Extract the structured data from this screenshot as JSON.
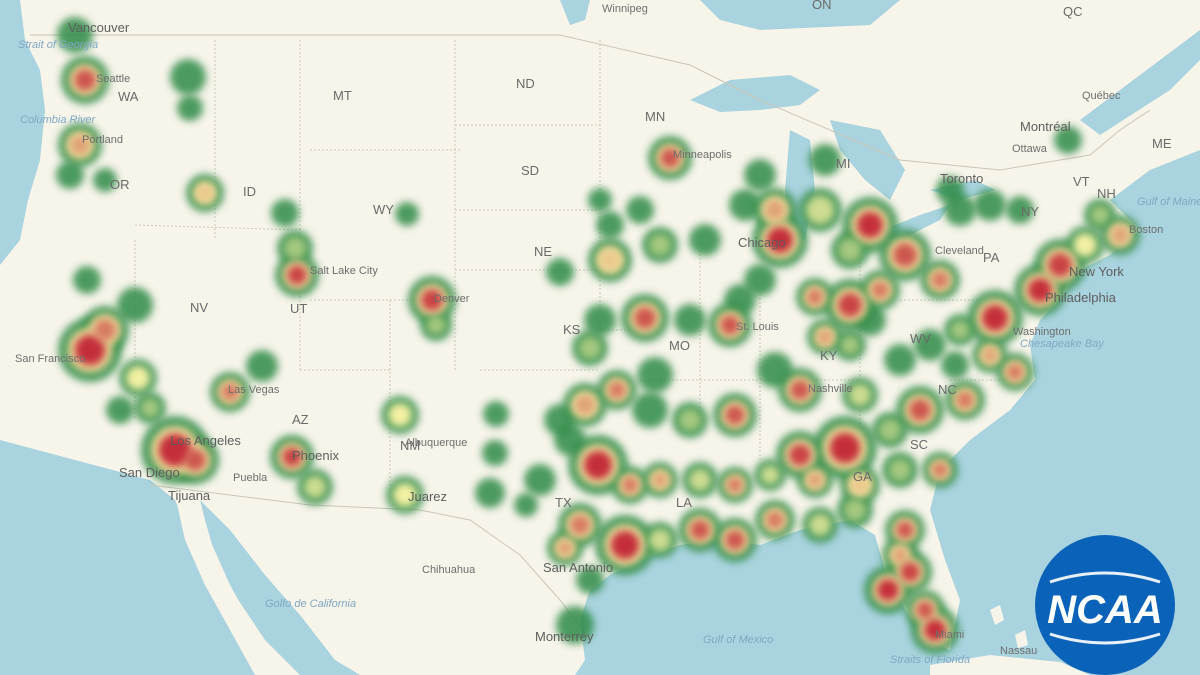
{
  "map": {
    "logo": {
      "text": "NCAA",
      "color": "#0a63b8"
    },
    "colors": {
      "water": "#a9d3de",
      "land": "#f7f4ea",
      "border": "#c9c4b6"
    },
    "country_labels": [
      "ON",
      "QC"
    ],
    "state_labels": [
      "WA",
      "OR",
      "ID",
      "MT",
      "WY",
      "NV",
      "UT",
      "AZ",
      "NM",
      "ND",
      "SD",
      "NE",
      "KS",
      "MO",
      "MN",
      "MI",
      "PA",
      "NY",
      "VT",
      "NH",
      "ME",
      "GA",
      "SC",
      "KY",
      "WV",
      "TX",
      "LA",
      "NC"
    ],
    "city_labels": [
      "Vancouver",
      "Seattle",
      "Portland",
      "San Francisco",
      "Las Vegas",
      "Los Angeles",
      "San Diego",
      "Tijuana",
      "Phoenix",
      "Puebla",
      "Salt Lake City",
      "Denver",
      "Albuquerque",
      "Juarez",
      "Chihuahua",
      "San Antonio",
      "Monterrey",
      "Minneapolis",
      "Chicago",
      "St. Louis",
      "Nashville",
      "Toronto",
      "Montréal",
      "Ottawa",
      "Québec",
      "Boston",
      "New York",
      "Philadelphia",
      "Washington",
      "Miami",
      "Nassau",
      "Winnipeg",
      "Cleveland"
    ],
    "water_labels": [
      "Columbia River",
      "Strait of Georgia",
      "Golfo de California",
      "Gulf of Mexico",
      "Straits of Florida",
      "Gulf of Maine",
      "Chesapeake Bay"
    ],
    "heat_legend": {
      "low": "#2e8b47",
      "mid": "#f3f0a2",
      "high": "#c42f3a"
    }
  }
}
